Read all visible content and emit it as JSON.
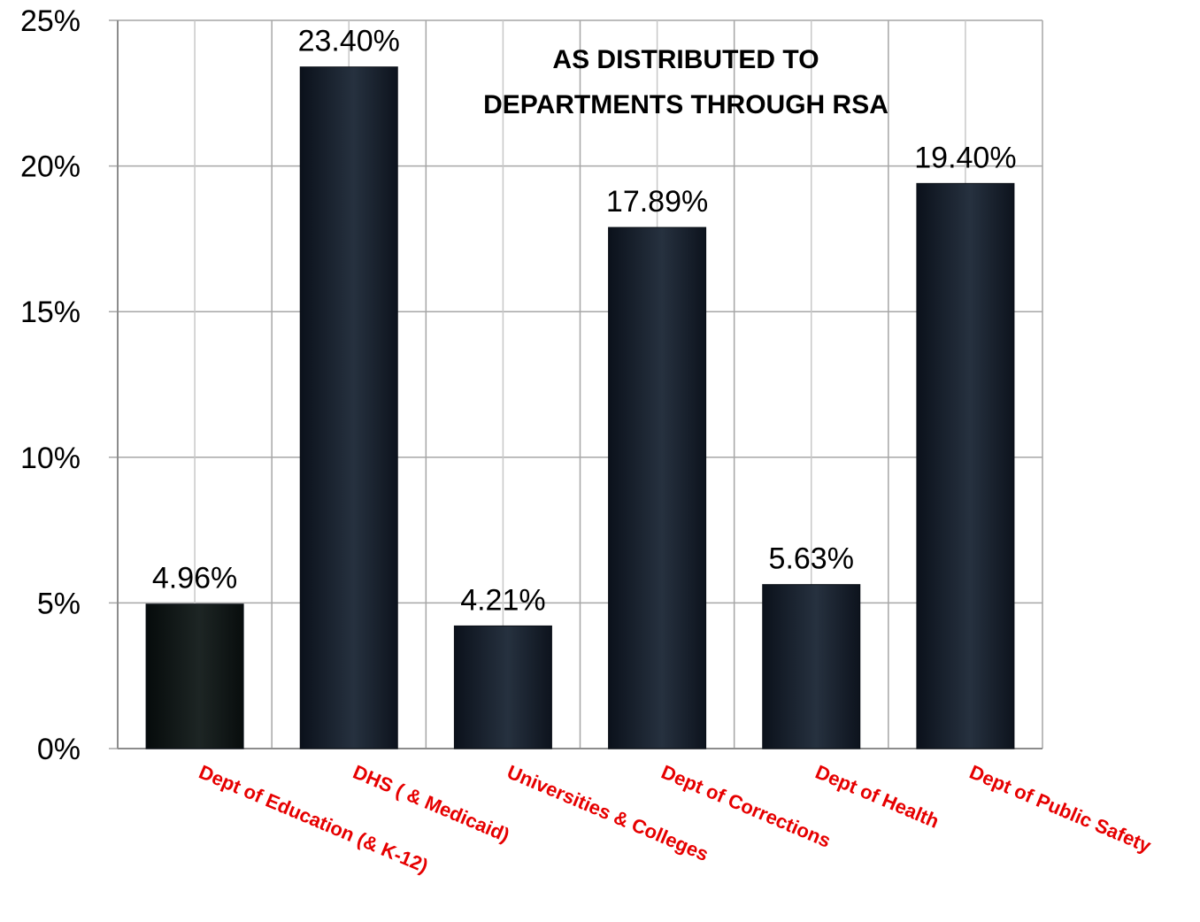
{
  "chart_data": {
    "type": "bar",
    "title_lines": [
      "AS DISTRIBUTED TO",
      "DEPARTMENTS THROUGH RSA"
    ],
    "categories": [
      "Dept of Education (& K-12)",
      "DHS ( & Medicaid)",
      "Universities & Colleges",
      "Dept of Corrections",
      "Dept of Health",
      "Dept of Public Safety"
    ],
    "values": [
      4.96,
      23.4,
      4.21,
      17.89,
      5.63,
      19.4
    ],
    "data_labels": [
      "4.96%",
      "23.40%",
      "4.21%",
      "17.89%",
      "5.63%",
      "19.40%"
    ],
    "ylim": [
      0,
      25
    ],
    "yticks": [
      {
        "value": 0,
        "label": "0%"
      },
      {
        "value": 5,
        "label": "5%"
      },
      {
        "value": 10,
        "label": "10%"
      },
      {
        "value": 15,
        "label": "15%"
      },
      {
        "value": 20,
        "label": "20%"
      },
      {
        "value": 25,
        "label": "25%"
      }
    ],
    "grid": true,
    "category_label_color": "#e60000",
    "bar_color": "#1c2431"
  }
}
